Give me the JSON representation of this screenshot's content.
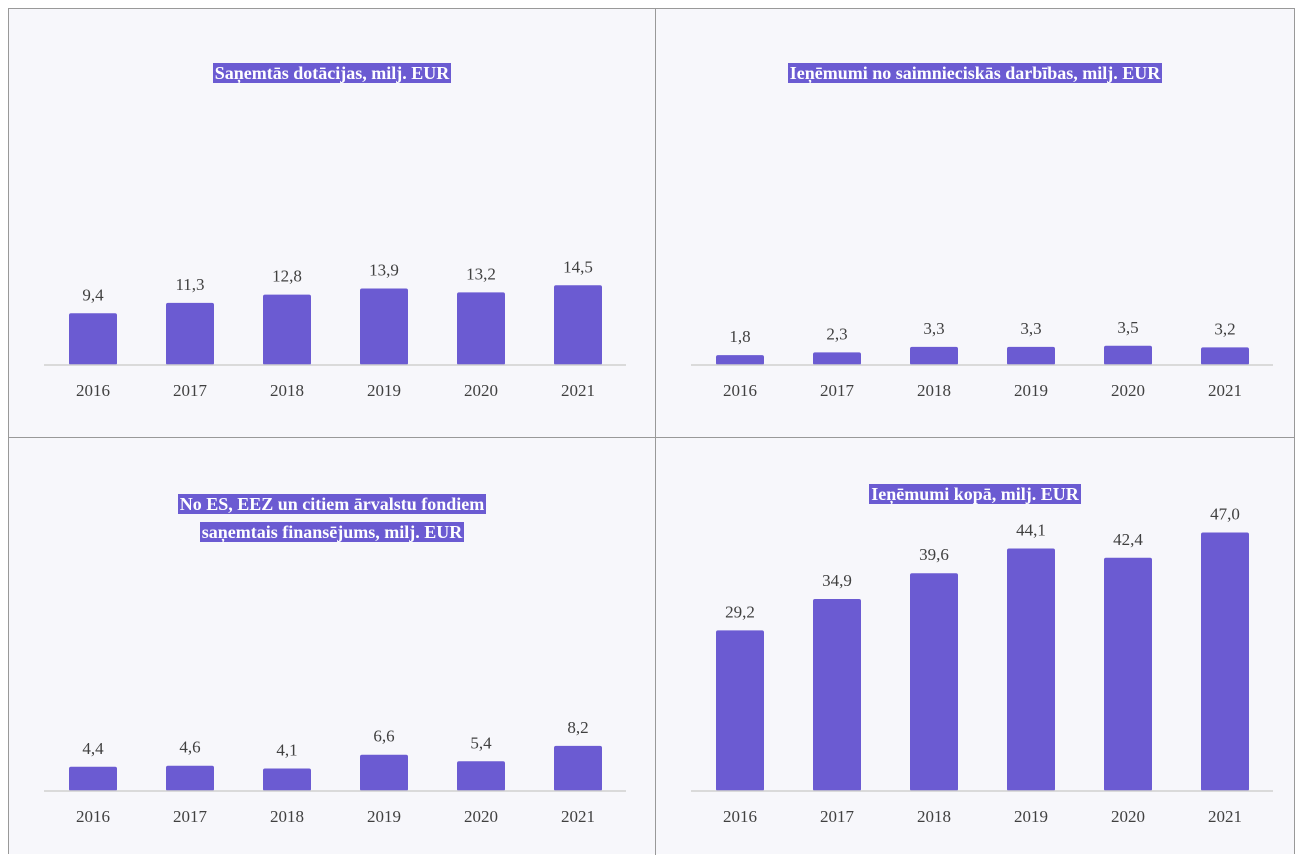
{
  "chart_data": [
    {
      "type": "bar",
      "title": "Saņemtās dotācijas, milj. EUR",
      "color": "#6b5bd2",
      "categories": [
        "2016",
        "2017",
        "2018",
        "2019",
        "2020",
        "2021"
      ],
      "values": [
        9.4,
        11.3,
        12.8,
        13.9,
        13.2,
        14.5
      ],
      "value_labels": [
        "9,4",
        "11,3",
        "12,8",
        "13,9",
        "13,2",
        "14,5"
      ]
    },
    {
      "type": "bar",
      "title": "Ieņēmumi no saimnieciskās darbības, milj. EUR",
      "color": "#6b5bd2",
      "categories": [
        "2016",
        "2017",
        "2018",
        "2019",
        "2020",
        "2021"
      ],
      "values": [
        1.8,
        2.3,
        3.3,
        3.3,
        3.5,
        3.2
      ],
      "value_labels": [
        "1,8",
        "2,3",
        "3,3",
        "3,3",
        "3,5",
        "3,2"
      ]
    },
    {
      "type": "bar",
      "title": "No ES, EEZ un citiem ārvalstu fondiem saņemtais finansējums, milj. EUR",
      "color": "#6b5bd2",
      "categories": [
        "2016",
        "2017",
        "2018",
        "2019",
        "2020",
        "2021"
      ],
      "values": [
        4.4,
        4.6,
        4.1,
        6.6,
        5.4,
        8.2
      ],
      "value_labels": [
        "4,4",
        "4,6",
        "4,1",
        "6,6",
        "5,4",
        "8,2"
      ]
    },
    {
      "type": "bar",
      "title": "Ieņēmumi kopā, milj. EUR",
      "color": "#6b5bd2",
      "categories": [
        "2016",
        "2017",
        "2018",
        "2019",
        "2020",
        "2021"
      ],
      "values": [
        29.2,
        34.9,
        39.6,
        44.1,
        42.4,
        47.0
      ],
      "value_labels": [
        "29,2",
        "34,9",
        "39,6",
        "44,1",
        "42,4",
        "47,0"
      ]
    }
  ]
}
